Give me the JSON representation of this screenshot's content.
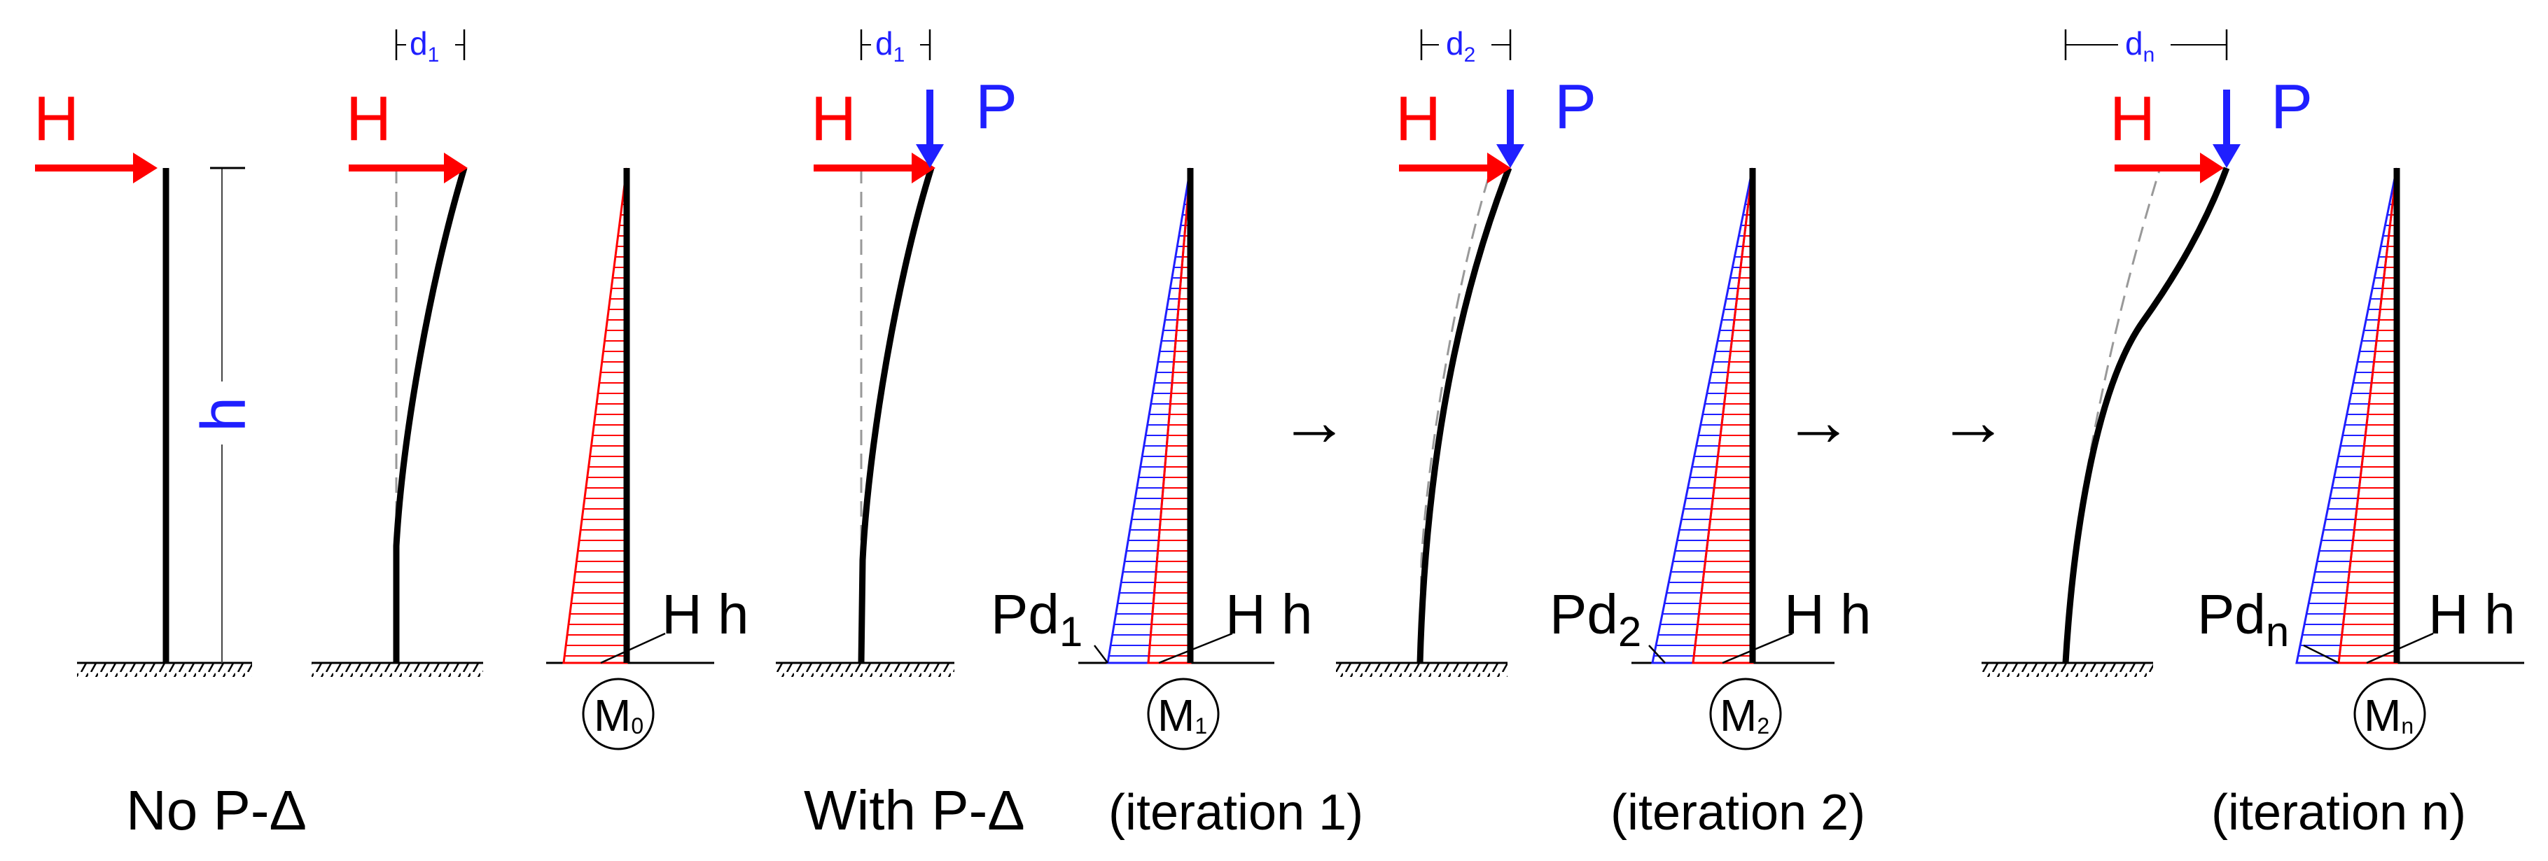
{
  "colors": {
    "force_h": "#ff0000",
    "force_p": "#1f1fff",
    "column": "#000000",
    "moment_first_order": "#ff0000",
    "moment_second_order": "#1f1fff",
    "hatch": "#ff0000",
    "hatch_blue": "#1f1fff"
  },
  "labels": {
    "H": "H",
    "P": "P",
    "h": "h",
    "d1": "d",
    "d1_sub": "1",
    "d2_sub": "2",
    "dn_sub": "n",
    "Hh": "H h",
    "Pd": "Pd",
    "M": "M",
    "M0_sub": "0",
    "M1_sub": "1",
    "M2_sub": "2",
    "Mn_sub": "n",
    "arrow": "→"
  },
  "captions": {
    "no_pdelta": "No P-Δ",
    "with_pdelta": "With P-Δ",
    "iter1": "(iteration 1)",
    "iter2": "(iteration 2)",
    "itern": "(iteration n)"
  }
}
